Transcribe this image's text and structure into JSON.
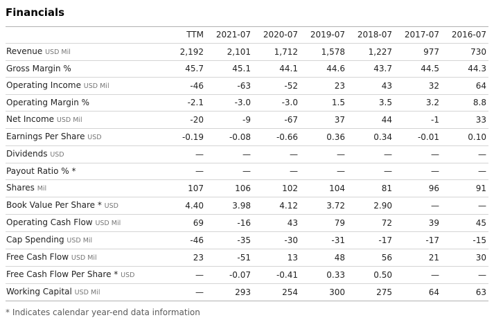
{
  "title": "Financials",
  "footnote": "* Indicates calendar year-end data information",
  "table": {
    "corner_header": "",
    "columns": [
      "TTM",
      "2021-07",
      "2020-07",
      "2019-07",
      "2018-07",
      "2017-07",
      "2016-07"
    ],
    "rows": [
      {
        "label": "Revenue",
        "unit": "USD Mil",
        "values": [
          "2,192",
          "2,101",
          "1,712",
          "1,578",
          "1,227",
          "977",
          "730"
        ]
      },
      {
        "label": "Gross Margin %",
        "unit": "",
        "values": [
          "45.7",
          "45.1",
          "44.1",
          "44.6",
          "43.7",
          "44.5",
          "44.3"
        ]
      },
      {
        "label": "Operating Income",
        "unit": "USD Mil",
        "values": [
          "-46",
          "-63",
          "-52",
          "23",
          "43",
          "32",
          "64"
        ]
      },
      {
        "label": "Operating Margin %",
        "unit": "",
        "values": [
          "-2.1",
          "-3.0",
          "-3.0",
          "1.5",
          "3.5",
          "3.2",
          "8.8"
        ]
      },
      {
        "label": "Net Income",
        "unit": "USD Mil",
        "values": [
          "-20",
          "-9",
          "-67",
          "37",
          "44",
          "-1",
          "33"
        ]
      },
      {
        "label": "Earnings Per Share",
        "unit": "USD",
        "values": [
          "-0.19",
          "-0.08",
          "-0.66",
          "0.36",
          "0.34",
          "-0.01",
          "0.10"
        ]
      },
      {
        "label": "Dividends",
        "unit": "USD",
        "values": [
          "—",
          "—",
          "—",
          "—",
          "—",
          "—",
          "—"
        ]
      },
      {
        "label": "Payout Ratio % *",
        "unit": "",
        "values": [
          "—",
          "—",
          "—",
          "—",
          "—",
          "—",
          "—"
        ]
      },
      {
        "label": "Shares",
        "unit": "Mil",
        "values": [
          "107",
          "106",
          "102",
          "104",
          "81",
          "96",
          "91"
        ]
      },
      {
        "label": "Book Value Per Share *",
        "unit": "USD",
        "values": [
          "4.40",
          "3.98",
          "4.12",
          "3.72",
          "2.90",
          "—",
          "—"
        ]
      },
      {
        "label": "Operating Cash Flow",
        "unit": "USD Mil",
        "values": [
          "69",
          "-16",
          "43",
          "79",
          "72",
          "39",
          "45"
        ]
      },
      {
        "label": "Cap Spending",
        "unit": "USD Mil",
        "values": [
          "-46",
          "-35",
          "-30",
          "-31",
          "-17",
          "-17",
          "-15"
        ]
      },
      {
        "label": "Free Cash Flow",
        "unit": "USD Mil",
        "values": [
          "23",
          "-51",
          "13",
          "48",
          "56",
          "21",
          "30"
        ]
      },
      {
        "label": "Free Cash Flow Per Share *",
        "unit": "USD",
        "values": [
          "—",
          "-0.07",
          "-0.41",
          "0.33",
          "0.50",
          "—",
          "—"
        ]
      },
      {
        "label": "Working Capital",
        "unit": "USD Mil",
        "values": [
          "—",
          "293",
          "254",
          "300",
          "275",
          "64",
          "63"
        ]
      }
    ]
  }
}
